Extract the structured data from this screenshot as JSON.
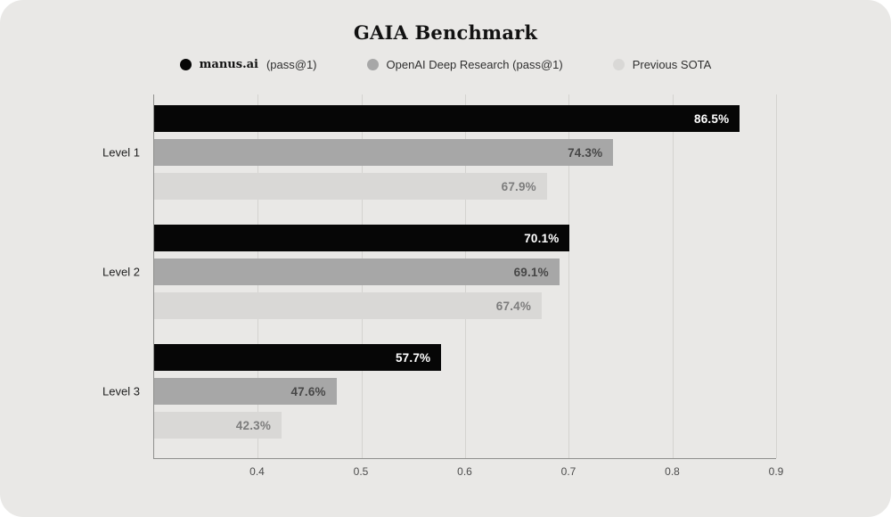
{
  "chart_data": {
    "type": "bar",
    "orientation": "horizontal",
    "title": "GAIA Benchmark",
    "categories": [
      "Level 1",
      "Level 2",
      "Level 3"
    ],
    "series": [
      {
        "name": "manus.ai (pass@1)",
        "color": "#060606",
        "label_color": "#ffffff",
        "values": [
          0.865,
          0.701,
          0.577
        ],
        "labels": [
          "86.5%",
          "70.1%",
          "57.7%"
        ]
      },
      {
        "name": "OpenAI Deep Research (pass@1)",
        "color": "#a7a7a7",
        "label_color": "#474747",
        "values": [
          0.743,
          0.691,
          0.476
        ],
        "labels": [
          "74.3%",
          "69.1%",
          "47.6%"
        ]
      },
      {
        "name": "Previous SOTA",
        "color": "#d9d8d6",
        "label_color": "#7d7d7d",
        "values": [
          0.679,
          0.674,
          0.423
        ],
        "labels": [
          "67.9%",
          "67.4%",
          "42.3%"
        ]
      }
    ],
    "xlim": [
      0.3,
      0.9
    ],
    "xticks": [
      0.4,
      0.5,
      0.6,
      0.7,
      0.8,
      0.9
    ],
    "grid": true,
    "legend_position": "top",
    "background": "#e9e8e6"
  },
  "legend": {
    "items": [
      {
        "label_strong": "manus.ai",
        "label_rest": "(pass@1)",
        "color": "#060606"
      },
      {
        "label_strong": "",
        "label_rest": "OpenAI Deep Research (pass@1)",
        "color": "#a7a7a7"
      },
      {
        "label_strong": "",
        "label_rest": "Previous SOTA",
        "color": "#d9d8d6"
      }
    ]
  }
}
